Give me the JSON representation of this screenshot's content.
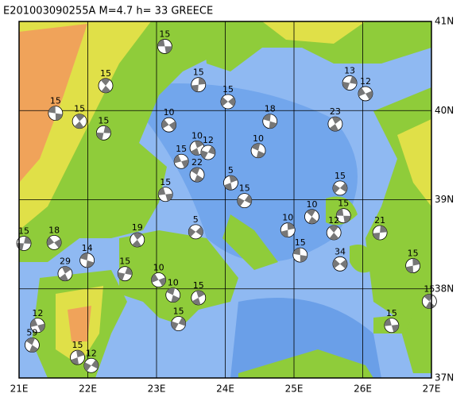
{
  "title": "E201003090255A  M=4.7  h=  33  GREECE",
  "lon_range": [
    21,
    27
  ],
  "lat_range": [
    37,
    41
  ],
  "lon_ticks": [
    {
      "value": 21,
      "label": "21E"
    },
    {
      "value": 22,
      "label": "22E"
    },
    {
      "value": 23,
      "label": "23E"
    },
    {
      "value": 24,
      "label": "24E"
    },
    {
      "value": 25,
      "label": "25E"
    },
    {
      "value": 26,
      "label": "26E"
    },
    {
      "value": 27,
      "label": "27E"
    }
  ],
  "lat_ticks": [
    {
      "value": 41,
      "label": "41N"
    },
    {
      "value": 40,
      "label": "40N"
    },
    {
      "value": 39,
      "label": "39N"
    },
    {
      "value": 38,
      "label": "38N"
    },
    {
      "value": 37,
      "label": "37N"
    }
  ],
  "events": [
    {
      "label": "15",
      "lon": 23.12,
      "lat": 40.72
    },
    {
      "label": "15",
      "lon": 22.26,
      "lat": 40.28
    },
    {
      "label": "15",
      "lon": 23.61,
      "lat": 40.29
    },
    {
      "label": "15",
      "lon": 24.04,
      "lat": 40.1
    },
    {
      "label": "15",
      "lon": 21.53,
      "lat": 39.97
    },
    {
      "label": "15",
      "lon": 21.88,
      "lat": 39.88
    },
    {
      "label": "15",
      "lon": 22.23,
      "lat": 39.75
    },
    {
      "label": "10",
      "lon": 23.18,
      "lat": 39.84
    },
    {
      "label": "18",
      "lon": 24.65,
      "lat": 39.88
    },
    {
      "label": "23",
      "lon": 25.6,
      "lat": 39.85
    },
    {
      "label": "13",
      "lon": 25.81,
      "lat": 40.31
    },
    {
      "label": "12",
      "lon": 26.04,
      "lat": 40.19
    },
    {
      "label": "10",
      "lon": 24.48,
      "lat": 39.55
    },
    {
      "label": "10",
      "lon": 23.59,
      "lat": 39.58
    },
    {
      "label": "12",
      "lon": 23.75,
      "lat": 39.53
    },
    {
      "label": "15",
      "lon": 23.36,
      "lat": 39.43
    },
    {
      "label": "22",
      "lon": 23.59,
      "lat": 39.28
    },
    {
      "label": "5",
      "lon": 24.08,
      "lat": 39.19
    },
    {
      "label": "15",
      "lon": 24.28,
      "lat": 38.99
    },
    {
      "label": "15",
      "lon": 23.13,
      "lat": 39.06
    },
    {
      "label": "10",
      "lon": 25.26,
      "lat": 38.81
    },
    {
      "label": "10",
      "lon": 24.91,
      "lat": 38.66
    },
    {
      "label": "15",
      "lon": 25.67,
      "lat": 39.13
    },
    {
      "label": "15",
      "lon": 25.72,
      "lat": 38.82
    },
    {
      "label": "12",
      "lon": 25.58,
      "lat": 38.63
    },
    {
      "label": "21",
      "lon": 26.25,
      "lat": 38.63
    },
    {
      "label": "34",
      "lon": 25.67,
      "lat": 38.28
    },
    {
      "label": "15",
      "lon": 25.09,
      "lat": 38.38
    },
    {
      "label": "19",
      "lon": 22.72,
      "lat": 38.55
    },
    {
      "label": "15",
      "lon": 21.07,
      "lat": 38.51
    },
    {
      "label": "18",
      "lon": 21.51,
      "lat": 38.52
    },
    {
      "label": "14",
      "lon": 21.99,
      "lat": 38.32
    },
    {
      "label": "29",
      "lon": 21.67,
      "lat": 38.17
    },
    {
      "label": "15",
      "lon": 22.54,
      "lat": 38.17
    },
    {
      "label": "10",
      "lon": 23.03,
      "lat": 38.1
    },
    {
      "label": "10",
      "lon": 23.24,
      "lat": 37.93
    },
    {
      "label": "15",
      "lon": 23.61,
      "lat": 37.9
    },
    {
      "label": "15",
      "lon": 23.32,
      "lat": 37.61
    },
    {
      "label": "12",
      "lon": 21.27,
      "lat": 37.59
    },
    {
      "label": "59",
      "lon": 21.19,
      "lat": 37.37
    },
    {
      "label": "15",
      "lon": 21.85,
      "lat": 37.23
    },
    {
      "label": "12",
      "lon": 22.05,
      "lat": 37.14
    },
    {
      "label": "15",
      "lon": 26.42,
      "lat": 37.59
    },
    {
      "label": "15",
      "lon": 26.97,
      "lat": 37.86
    },
    {
      "label": "15",
      "lon": 26.73,
      "lat": 38.26
    },
    {
      "label": "5",
      "lon": 23.57,
      "lat": 38.64
    }
  ]
}
